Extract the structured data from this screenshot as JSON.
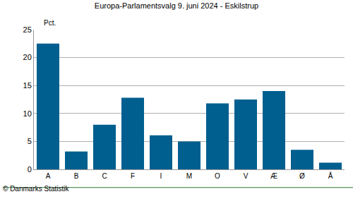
{
  "chart_data": {
    "type": "bar",
    "title": "Europa-Parlamentsvalg 9. juni 2024 - Eskilstrup",
    "ylabel": "Pct.",
    "categories": [
      "A",
      "B",
      "C",
      "F",
      "I",
      "M",
      "O",
      "V",
      "Æ",
      "Ø",
      "Å"
    ],
    "values": [
      22.5,
      3.2,
      8.0,
      12.8,
      6.1,
      5.0,
      11.8,
      12.5,
      14.0,
      3.5,
      1.2
    ],
    "color": "#005f8f",
    "ylim": [
      0,
      25
    ],
    "yticks": [
      0,
      5,
      10,
      15,
      20,
      25
    ],
    "grid": true,
    "annotations": [
      {
        "text": "© Danmarks Statistik"
      }
    ]
  }
}
